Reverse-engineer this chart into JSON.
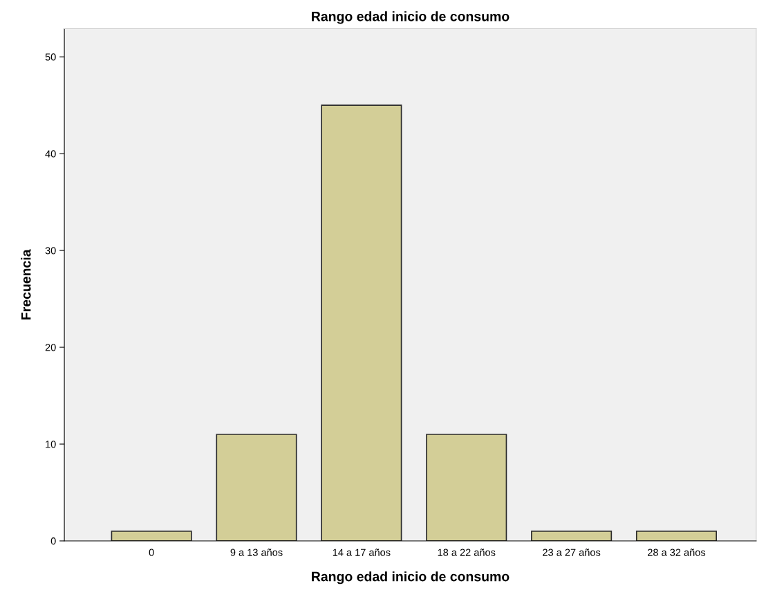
{
  "chart_data": {
    "type": "bar",
    "title": "Rango edad inicio de consumo",
    "xlabel": "Rango edad inicio de consumo",
    "ylabel": "Frecuencia",
    "categories": [
      "0",
      "9 a 13 años",
      "14 a 17 años",
      "18 a 22 años",
      "23 a 27 años",
      "28 a 32 años"
    ],
    "values": [
      1,
      11,
      45,
      11,
      1,
      1
    ],
    "color": "#d3ce97",
    "ylim": [
      0,
      52.9
    ],
    "yticks": [
      0,
      10,
      20,
      30,
      40,
      50
    ],
    "grid": false
  }
}
